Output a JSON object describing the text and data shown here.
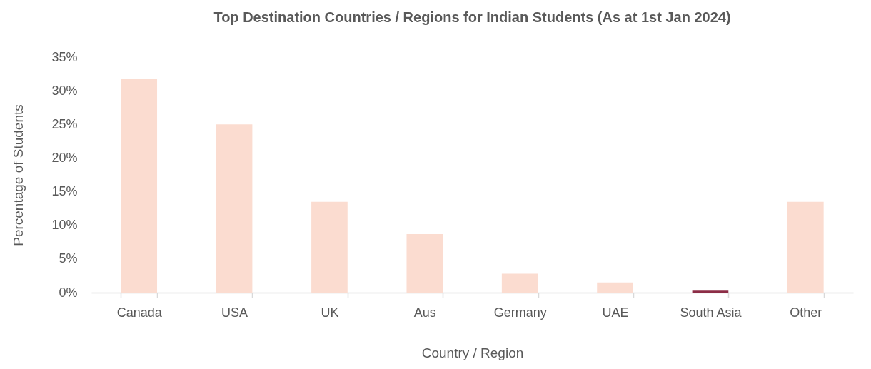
{
  "chart_data": {
    "type": "bar",
    "title": "Top Destination Countries / Regions for Indian Students (As at 1st Jan 2024)",
    "xlabel": "Country / Region",
    "ylabel": "Percentage of Students",
    "categories": [
      "Canada",
      "USA",
      "UK",
      "Aus",
      "Germany",
      "UAE",
      "South Asia",
      "Other"
    ],
    "values": [
      31.8,
      25.0,
      13.5,
      8.7,
      2.8,
      1.5,
      0.3,
      13.5
    ],
    "colors": [
      "#fbdcd0",
      "#fbdcd0",
      "#fbdcd0",
      "#fbdcd0",
      "#fbdcd0",
      "#fbdcd0",
      "#8c2d46",
      "#fbdcd0"
    ],
    "ylim": [
      0,
      35
    ],
    "yticks": [
      {
        "value": 0,
        "label": "0%"
      },
      {
        "value": 5,
        "label": "5%"
      },
      {
        "value": 10,
        "label": "10%"
      },
      {
        "value": 15,
        "label": "15%"
      },
      {
        "value": 20,
        "label": "20%"
      },
      {
        "value": 25,
        "label": "25%"
      },
      {
        "value": 30,
        "label": "30%"
      },
      {
        "value": 35,
        "label": "35%"
      }
    ],
    "grid": false
  }
}
